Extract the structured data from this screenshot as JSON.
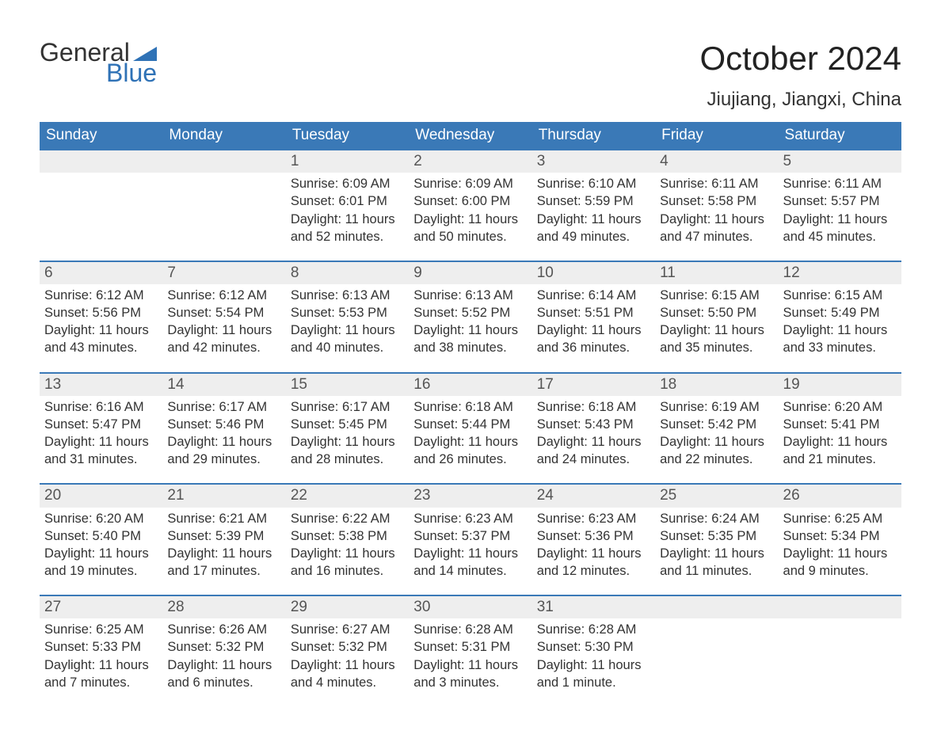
{
  "logo": {
    "word1": "General",
    "word2": "Blue",
    "word1_color": "#333333",
    "word2_color": "#2f72b6",
    "triangle_color": "#2f72b6"
  },
  "title": "October 2024",
  "location": "Jiujiang, Jiangxi, China",
  "columns": [
    "Sunday",
    "Monday",
    "Tuesday",
    "Wednesday",
    "Thursday",
    "Friday",
    "Saturday"
  ],
  "colors": {
    "header_bg": "#3a79b7",
    "header_text": "#ffffff",
    "daynum_bg": "#eeeeee",
    "daynum_border": "#3a79b7",
    "text": "#333333",
    "background": "#ffffff"
  },
  "font": {
    "family": "Arial",
    "title_size_pt": 32,
    "header_size_pt": 14,
    "cell_size_pt": 12
  },
  "weeks": [
    [
      null,
      null,
      {
        "n": "1",
        "sunrise": "Sunrise: 6:09 AM",
        "sunset": "Sunset: 6:01 PM",
        "day1": "Daylight: 11 hours",
        "day2": "and 52 minutes."
      },
      {
        "n": "2",
        "sunrise": "Sunrise: 6:09 AM",
        "sunset": "Sunset: 6:00 PM",
        "day1": "Daylight: 11 hours",
        "day2": "and 50 minutes."
      },
      {
        "n": "3",
        "sunrise": "Sunrise: 6:10 AM",
        "sunset": "Sunset: 5:59 PM",
        "day1": "Daylight: 11 hours",
        "day2": "and 49 minutes."
      },
      {
        "n": "4",
        "sunrise": "Sunrise: 6:11 AM",
        "sunset": "Sunset: 5:58 PM",
        "day1": "Daylight: 11 hours",
        "day2": "and 47 minutes."
      },
      {
        "n": "5",
        "sunrise": "Sunrise: 6:11 AM",
        "sunset": "Sunset: 5:57 PM",
        "day1": "Daylight: 11 hours",
        "day2": "and 45 minutes."
      }
    ],
    [
      {
        "n": "6",
        "sunrise": "Sunrise: 6:12 AM",
        "sunset": "Sunset: 5:56 PM",
        "day1": "Daylight: 11 hours",
        "day2": "and 43 minutes."
      },
      {
        "n": "7",
        "sunrise": "Sunrise: 6:12 AM",
        "sunset": "Sunset: 5:54 PM",
        "day1": "Daylight: 11 hours",
        "day2": "and 42 minutes."
      },
      {
        "n": "8",
        "sunrise": "Sunrise: 6:13 AM",
        "sunset": "Sunset: 5:53 PM",
        "day1": "Daylight: 11 hours",
        "day2": "and 40 minutes."
      },
      {
        "n": "9",
        "sunrise": "Sunrise: 6:13 AM",
        "sunset": "Sunset: 5:52 PM",
        "day1": "Daylight: 11 hours",
        "day2": "and 38 minutes."
      },
      {
        "n": "10",
        "sunrise": "Sunrise: 6:14 AM",
        "sunset": "Sunset: 5:51 PM",
        "day1": "Daylight: 11 hours",
        "day2": "and 36 minutes."
      },
      {
        "n": "11",
        "sunrise": "Sunrise: 6:15 AM",
        "sunset": "Sunset: 5:50 PM",
        "day1": "Daylight: 11 hours",
        "day2": "and 35 minutes."
      },
      {
        "n": "12",
        "sunrise": "Sunrise: 6:15 AM",
        "sunset": "Sunset: 5:49 PM",
        "day1": "Daylight: 11 hours",
        "day2": "and 33 minutes."
      }
    ],
    [
      {
        "n": "13",
        "sunrise": "Sunrise: 6:16 AM",
        "sunset": "Sunset: 5:47 PM",
        "day1": "Daylight: 11 hours",
        "day2": "and 31 minutes."
      },
      {
        "n": "14",
        "sunrise": "Sunrise: 6:17 AM",
        "sunset": "Sunset: 5:46 PM",
        "day1": "Daylight: 11 hours",
        "day2": "and 29 minutes."
      },
      {
        "n": "15",
        "sunrise": "Sunrise: 6:17 AM",
        "sunset": "Sunset: 5:45 PM",
        "day1": "Daylight: 11 hours",
        "day2": "and 28 minutes."
      },
      {
        "n": "16",
        "sunrise": "Sunrise: 6:18 AM",
        "sunset": "Sunset: 5:44 PM",
        "day1": "Daylight: 11 hours",
        "day2": "and 26 minutes."
      },
      {
        "n": "17",
        "sunrise": "Sunrise: 6:18 AM",
        "sunset": "Sunset: 5:43 PM",
        "day1": "Daylight: 11 hours",
        "day2": "and 24 minutes."
      },
      {
        "n": "18",
        "sunrise": "Sunrise: 6:19 AM",
        "sunset": "Sunset: 5:42 PM",
        "day1": "Daylight: 11 hours",
        "day2": "and 22 minutes."
      },
      {
        "n": "19",
        "sunrise": "Sunrise: 6:20 AM",
        "sunset": "Sunset: 5:41 PM",
        "day1": "Daylight: 11 hours",
        "day2": "and 21 minutes."
      }
    ],
    [
      {
        "n": "20",
        "sunrise": "Sunrise: 6:20 AM",
        "sunset": "Sunset: 5:40 PM",
        "day1": "Daylight: 11 hours",
        "day2": "and 19 minutes."
      },
      {
        "n": "21",
        "sunrise": "Sunrise: 6:21 AM",
        "sunset": "Sunset: 5:39 PM",
        "day1": "Daylight: 11 hours",
        "day2": "and 17 minutes."
      },
      {
        "n": "22",
        "sunrise": "Sunrise: 6:22 AM",
        "sunset": "Sunset: 5:38 PM",
        "day1": "Daylight: 11 hours",
        "day2": "and 16 minutes."
      },
      {
        "n": "23",
        "sunrise": "Sunrise: 6:23 AM",
        "sunset": "Sunset: 5:37 PM",
        "day1": "Daylight: 11 hours",
        "day2": "and 14 minutes."
      },
      {
        "n": "24",
        "sunrise": "Sunrise: 6:23 AM",
        "sunset": "Sunset: 5:36 PM",
        "day1": "Daylight: 11 hours",
        "day2": "and 12 minutes."
      },
      {
        "n": "25",
        "sunrise": "Sunrise: 6:24 AM",
        "sunset": "Sunset: 5:35 PM",
        "day1": "Daylight: 11 hours",
        "day2": "and 11 minutes."
      },
      {
        "n": "26",
        "sunrise": "Sunrise: 6:25 AM",
        "sunset": "Sunset: 5:34 PM",
        "day1": "Daylight: 11 hours",
        "day2": "and 9 minutes."
      }
    ],
    [
      {
        "n": "27",
        "sunrise": "Sunrise: 6:25 AM",
        "sunset": "Sunset: 5:33 PM",
        "day1": "Daylight: 11 hours",
        "day2": "and 7 minutes."
      },
      {
        "n": "28",
        "sunrise": "Sunrise: 6:26 AM",
        "sunset": "Sunset: 5:32 PM",
        "day1": "Daylight: 11 hours",
        "day2": "and 6 minutes."
      },
      {
        "n": "29",
        "sunrise": "Sunrise: 6:27 AM",
        "sunset": "Sunset: 5:32 PM",
        "day1": "Daylight: 11 hours",
        "day2": "and 4 minutes."
      },
      {
        "n": "30",
        "sunrise": "Sunrise: 6:28 AM",
        "sunset": "Sunset: 5:31 PM",
        "day1": "Daylight: 11 hours",
        "day2": "and 3 minutes."
      },
      {
        "n": "31",
        "sunrise": "Sunrise: 6:28 AM",
        "sunset": "Sunset: 5:30 PM",
        "day1": "Daylight: 11 hours",
        "day2": "and 1 minute."
      },
      null,
      null
    ]
  ]
}
